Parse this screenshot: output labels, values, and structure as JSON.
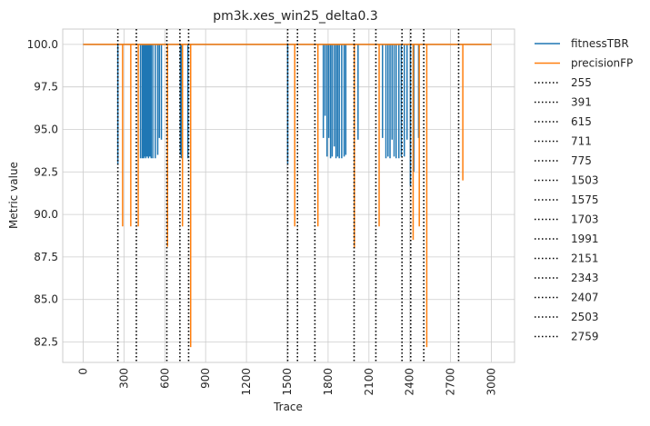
{
  "chart_data": {
    "type": "line",
    "title": "pm3k.xes_win25_delta0.3",
    "xlabel": "Trace",
    "ylabel": "Metric value",
    "xlim": [
      -150,
      3170
    ],
    "ylim": [
      81.3,
      100.9
    ],
    "x_ticks": [
      0,
      300,
      600,
      900,
      1200,
      1500,
      1800,
      2100,
      2400,
      2700,
      3000
    ],
    "y_ticks": [
      "82.5",
      "85.0",
      "87.5",
      "90.0",
      "92.5",
      "95.0",
      "97.5",
      "100.0"
    ],
    "y_tick_values": [
      82.5,
      85.0,
      87.5,
      90.0,
      92.5,
      95.0,
      97.5,
      100.0
    ],
    "grid": true,
    "legend_position": "outside-right",
    "series": [
      {
        "name": "fitnessTBR",
        "color": "#1f77b4",
        "baseline": 100.0,
        "dips": [
          [
            255,
            93.0
          ],
          [
            422,
            93.3
          ],
          [
            435,
            93.3
          ],
          [
            445,
            93.3
          ],
          [
            452,
            93.4
          ],
          [
            460,
            93.3
          ],
          [
            470,
            93.4
          ],
          [
            480,
            93.3
          ],
          [
            490,
            93.4
          ],
          [
            500,
            93.3
          ],
          [
            512,
            93.3
          ],
          [
            530,
            93.3
          ],
          [
            548,
            93.5
          ],
          [
            560,
            94.5
          ],
          [
            575,
            94.4
          ],
          [
            715,
            93.5
          ],
          [
            722,
            93.3
          ],
          [
            770,
            93.3
          ],
          [
            1503,
            93.0
          ],
          [
            1765,
            94.5
          ],
          [
            1778,
            95.8
          ],
          [
            1792,
            93.4
          ],
          [
            1805,
            94.5
          ],
          [
            1818,
            93.3
          ],
          [
            1830,
            93.4
          ],
          [
            1845,
            94.0
          ],
          [
            1858,
            93.3
          ],
          [
            1870,
            93.4
          ],
          [
            1882,
            93.3
          ],
          [
            1900,
            93.3
          ],
          [
            1918,
            93.4
          ],
          [
            1930,
            93.5
          ],
          [
            2020,
            94.4
          ],
          [
            2200,
            94.5
          ],
          [
            2225,
            93.3
          ],
          [
            2240,
            93.4
          ],
          [
            2255,
            93.3
          ],
          [
            2270,
            94.4
          ],
          [
            2285,
            93.4
          ],
          [
            2300,
            93.3
          ],
          [
            2320,
            93.3
          ],
          [
            2338,
            93.4
          ],
          [
            2360,
            93.4
          ],
          [
            2380,
            94.4
          ],
          [
            2405,
            91.7
          ],
          [
            2430,
            92.5
          ],
          [
            2465,
            94.5
          ]
        ]
      },
      {
        "name": "precisionFP",
        "color": "#ff7f0e",
        "baseline": 100.0,
        "dips": [
          [
            290,
            89.3
          ],
          [
            350,
            89.3
          ],
          [
            405,
            89.3
          ],
          [
            620,
            88.1
          ],
          [
            730,
            89.3
          ],
          [
            790,
            82.2
          ],
          [
            1555,
            89.3
          ],
          [
            1725,
            89.3
          ],
          [
            1993,
            88.0
          ],
          [
            2175,
            89.3
          ],
          [
            2425,
            88.5
          ],
          [
            2470,
            89.3
          ],
          [
            2525,
            82.2
          ],
          [
            2790,
            92.0
          ]
        ]
      }
    ],
    "vlines": {
      "style": "dotted",
      "color": "#000000",
      "values": [
        255,
        391,
        615,
        711,
        775,
        1503,
        1575,
        1703,
        1991,
        2151,
        2343,
        2407,
        2503,
        2759
      ],
      "labels": [
        "255",
        "391",
        "615",
        "711",
        "775",
        "1503",
        "1575",
        "1703",
        "1991",
        "2151",
        "2343",
        "2407",
        "2503",
        "2759"
      ]
    }
  }
}
